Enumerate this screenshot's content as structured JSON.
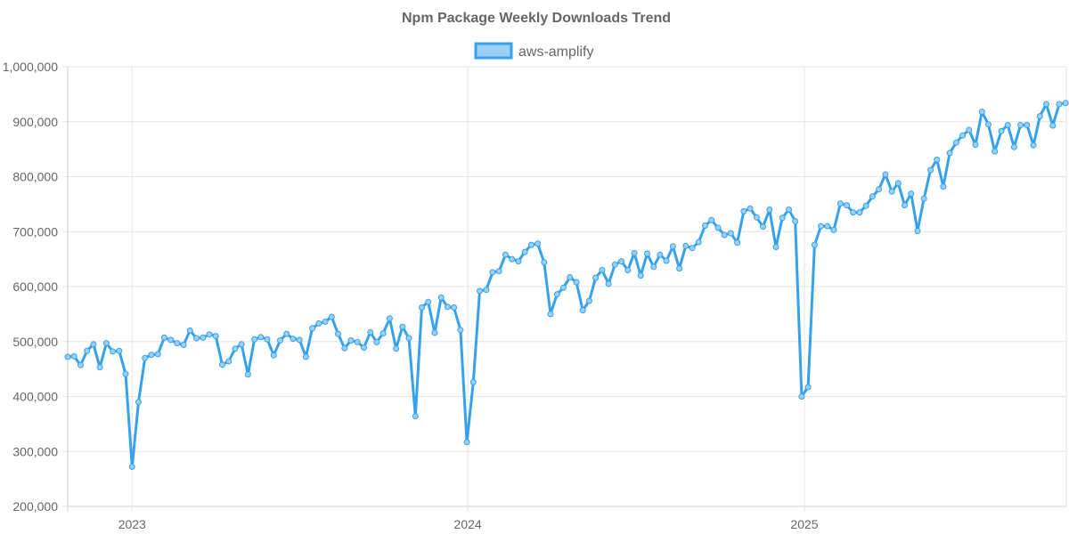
{
  "chart_data": {
    "type": "line",
    "title": "Npm Package Weekly Downloads Trend",
    "xlabel": "",
    "ylabel": "",
    "ylim": [
      200000,
      1000000
    ],
    "xlim": [
      "2022-10-23",
      "2025-10-05"
    ],
    "y_ticks": [
      "200,000",
      "300,000",
      "400,000",
      "500,000",
      "600,000",
      "700,000",
      "800,000",
      "900,000",
      "1,000,000"
    ],
    "y_tick_values": [
      200000,
      300000,
      400000,
      500000,
      600000,
      700000,
      800000,
      900000,
      1000000
    ],
    "x_ticks": [
      {
        "label": "2023",
        "date": "2023-01-01"
      },
      {
        "label": "2024",
        "date": "2024-01-01"
      },
      {
        "label": "2025",
        "date": "2025-01-01"
      }
    ],
    "grid": true,
    "legend_position": "top",
    "series": [
      {
        "name": "aws-amplify",
        "color": "#36a2eb",
        "fill_color": "#9ad0f5",
        "points": [
          {
            "x": "2022-10-23",
            "y": 472000
          },
          {
            "x": "2022-10-30",
            "y": 473000
          },
          {
            "x": "2022-11-06",
            "y": 457000
          },
          {
            "x": "2022-11-13",
            "y": 483000
          },
          {
            "x": "2022-11-20",
            "y": 495000
          },
          {
            "x": "2022-11-27",
            "y": 453000
          },
          {
            "x": "2022-12-04",
            "y": 497000
          },
          {
            "x": "2022-12-11",
            "y": 482000
          },
          {
            "x": "2022-12-18",
            "y": 483000
          },
          {
            "x": "2022-12-25",
            "y": 441000
          },
          {
            "x": "2023-01-01",
            "y": 272000
          },
          {
            "x": "2023-01-08",
            "y": 390000
          },
          {
            "x": "2023-01-15",
            "y": 470000
          },
          {
            "x": "2023-01-22",
            "y": 476000
          },
          {
            "x": "2023-01-29",
            "y": 477000
          },
          {
            "x": "2023-02-05",
            "y": 507000
          },
          {
            "x": "2023-02-12",
            "y": 503000
          },
          {
            "x": "2023-02-19",
            "y": 497000
          },
          {
            "x": "2023-02-26",
            "y": 494000
          },
          {
            "x": "2023-03-05",
            "y": 520000
          },
          {
            "x": "2023-03-12",
            "y": 506000
          },
          {
            "x": "2023-03-19",
            "y": 507000
          },
          {
            "x": "2023-03-26",
            "y": 513000
          },
          {
            "x": "2023-04-02",
            "y": 510000
          },
          {
            "x": "2023-04-09",
            "y": 458000
          },
          {
            "x": "2023-04-16",
            "y": 464000
          },
          {
            "x": "2023-04-23",
            "y": 487000
          },
          {
            "x": "2023-04-30",
            "y": 495000
          },
          {
            "x": "2023-05-07",
            "y": 440000
          },
          {
            "x": "2023-05-14",
            "y": 504000
          },
          {
            "x": "2023-05-21",
            "y": 508000
          },
          {
            "x": "2023-05-28",
            "y": 504000
          },
          {
            "x": "2023-06-04",
            "y": 475000
          },
          {
            "x": "2023-06-11",
            "y": 502000
          },
          {
            "x": "2023-06-18",
            "y": 514000
          },
          {
            "x": "2023-06-25",
            "y": 505000
          },
          {
            "x": "2023-07-02",
            "y": 503000
          },
          {
            "x": "2023-07-09",
            "y": 472000
          },
          {
            "x": "2023-07-16",
            "y": 524000
          },
          {
            "x": "2023-07-23",
            "y": 533000
          },
          {
            "x": "2023-07-30",
            "y": 536000
          },
          {
            "x": "2023-08-06",
            "y": 545000
          },
          {
            "x": "2023-08-13",
            "y": 514000
          },
          {
            "x": "2023-08-20",
            "y": 488000
          },
          {
            "x": "2023-08-27",
            "y": 502000
          },
          {
            "x": "2023-09-03",
            "y": 499000
          },
          {
            "x": "2023-09-10",
            "y": 489000
          },
          {
            "x": "2023-09-17",
            "y": 517000
          },
          {
            "x": "2023-09-24",
            "y": 499000
          },
          {
            "x": "2023-10-01",
            "y": 515000
          },
          {
            "x": "2023-10-08",
            "y": 542000
          },
          {
            "x": "2023-10-15",
            "y": 487000
          },
          {
            "x": "2023-10-22",
            "y": 527000
          },
          {
            "x": "2023-10-29",
            "y": 506000
          },
          {
            "x": "2023-11-05",
            "y": 364000
          },
          {
            "x": "2023-11-12",
            "y": 562000
          },
          {
            "x": "2023-11-19",
            "y": 572000
          },
          {
            "x": "2023-11-26",
            "y": 516000
          },
          {
            "x": "2023-12-03",
            "y": 580000
          },
          {
            "x": "2023-12-10",
            "y": 563000
          },
          {
            "x": "2023-12-17",
            "y": 562000
          },
          {
            "x": "2023-12-24",
            "y": 521000
          },
          {
            "x": "2023-12-31",
            "y": 317000
          },
          {
            "x": "2024-01-07",
            "y": 426000
          },
          {
            "x": "2024-01-14",
            "y": 592000
          },
          {
            "x": "2024-01-21",
            "y": 594000
          },
          {
            "x": "2024-01-28",
            "y": 626000
          },
          {
            "x": "2024-02-04",
            "y": 628000
          },
          {
            "x": "2024-02-11",
            "y": 658000
          },
          {
            "x": "2024-02-18",
            "y": 650000
          },
          {
            "x": "2024-02-25",
            "y": 646000
          },
          {
            "x": "2024-03-03",
            "y": 663000
          },
          {
            "x": "2024-03-10",
            "y": 676000
          },
          {
            "x": "2024-03-17",
            "y": 678000
          },
          {
            "x": "2024-03-24",
            "y": 644000
          },
          {
            "x": "2024-03-31",
            "y": 550000
          },
          {
            "x": "2024-04-07",
            "y": 586000
          },
          {
            "x": "2024-04-14",
            "y": 598000
          },
          {
            "x": "2024-04-21",
            "y": 617000
          },
          {
            "x": "2024-04-28",
            "y": 608000
          },
          {
            "x": "2024-05-05",
            "y": 557000
          },
          {
            "x": "2024-05-12",
            "y": 574000
          },
          {
            "x": "2024-05-19",
            "y": 616000
          },
          {
            "x": "2024-05-26",
            "y": 630000
          },
          {
            "x": "2024-06-02",
            "y": 605000
          },
          {
            "x": "2024-06-09",
            "y": 640000
          },
          {
            "x": "2024-06-16",
            "y": 646000
          },
          {
            "x": "2024-06-23",
            "y": 630000
          },
          {
            "x": "2024-06-30",
            "y": 661000
          },
          {
            "x": "2024-07-07",
            "y": 620000
          },
          {
            "x": "2024-07-14",
            "y": 660000
          },
          {
            "x": "2024-07-21",
            "y": 636000
          },
          {
            "x": "2024-07-28",
            "y": 658000
          },
          {
            "x": "2024-08-04",
            "y": 647000
          },
          {
            "x": "2024-08-11",
            "y": 673000
          },
          {
            "x": "2024-08-18",
            "y": 633000
          },
          {
            "x": "2024-08-25",
            "y": 674000
          },
          {
            "x": "2024-09-01",
            "y": 670000
          },
          {
            "x": "2024-09-08",
            "y": 681000
          },
          {
            "x": "2024-09-15",
            "y": 711000
          },
          {
            "x": "2024-09-22",
            "y": 721000
          },
          {
            "x": "2024-09-29",
            "y": 707000
          },
          {
            "x": "2024-10-06",
            "y": 694000
          },
          {
            "x": "2024-10-13",
            "y": 697000
          },
          {
            "x": "2024-10-20",
            "y": 680000
          },
          {
            "x": "2024-10-27",
            "y": 737000
          },
          {
            "x": "2024-11-03",
            "y": 742000
          },
          {
            "x": "2024-11-10",
            "y": 726000
          },
          {
            "x": "2024-11-17",
            "y": 709000
          },
          {
            "x": "2024-11-24",
            "y": 740000
          },
          {
            "x": "2024-12-01",
            "y": 672000
          },
          {
            "x": "2024-12-08",
            "y": 725000
          },
          {
            "x": "2024-12-15",
            "y": 740000
          },
          {
            "x": "2024-12-22",
            "y": 719000
          },
          {
            "x": "2024-12-29",
            "y": 400000
          },
          {
            "x": "2025-01-05",
            "y": 417000
          },
          {
            "x": "2025-01-12",
            "y": 676000
          },
          {
            "x": "2025-01-19",
            "y": 710000
          },
          {
            "x": "2025-01-26",
            "y": 710000
          },
          {
            "x": "2025-02-02",
            "y": 703000
          },
          {
            "x": "2025-02-09",
            "y": 751000
          },
          {
            "x": "2025-02-16",
            "y": 748000
          },
          {
            "x": "2025-02-23",
            "y": 735000
          },
          {
            "x": "2025-03-02",
            "y": 735000
          },
          {
            "x": "2025-03-09",
            "y": 747000
          },
          {
            "x": "2025-03-16",
            "y": 764000
          },
          {
            "x": "2025-03-23",
            "y": 777000
          },
          {
            "x": "2025-03-30",
            "y": 804000
          },
          {
            "x": "2025-04-06",
            "y": 773000
          },
          {
            "x": "2025-04-13",
            "y": 788000
          },
          {
            "x": "2025-04-20",
            "y": 748000
          },
          {
            "x": "2025-04-27",
            "y": 769000
          },
          {
            "x": "2025-05-04",
            "y": 701000
          },
          {
            "x": "2025-05-11",
            "y": 760000
          },
          {
            "x": "2025-05-18",
            "y": 812000
          },
          {
            "x": "2025-05-25",
            "y": 831000
          },
          {
            "x": "2025-06-01",
            "y": 782000
          },
          {
            "x": "2025-06-08",
            "y": 843000
          },
          {
            "x": "2025-06-15",
            "y": 862000
          },
          {
            "x": "2025-06-22",
            "y": 875000
          },
          {
            "x": "2025-06-29",
            "y": 885000
          },
          {
            "x": "2025-07-06",
            "y": 858000
          },
          {
            "x": "2025-07-13",
            "y": 918000
          },
          {
            "x": "2025-07-20",
            "y": 895000
          },
          {
            "x": "2025-07-27",
            "y": 846000
          },
          {
            "x": "2025-08-03",
            "y": 883000
          },
          {
            "x": "2025-08-10",
            "y": 894000
          },
          {
            "x": "2025-08-17",
            "y": 854000
          },
          {
            "x": "2025-08-24",
            "y": 894000
          },
          {
            "x": "2025-08-31",
            "y": 894000
          },
          {
            "x": "2025-09-07",
            "y": 857000
          },
          {
            "x": "2025-09-14",
            "y": 910000
          },
          {
            "x": "2025-09-21",
            "y": 932000
          },
          {
            "x": "2025-09-28",
            "y": 893000
          },
          {
            "x": "2025-10-05",
            "y": 932000
          },
          {
            "x": "2025-10-12",
            "y": 934000
          }
        ]
      }
    ]
  }
}
